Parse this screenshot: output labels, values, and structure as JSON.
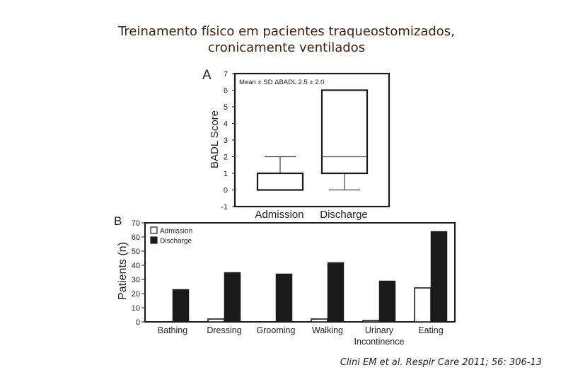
{
  "slide": {
    "title_line1": "Treinamento físico em pacientes traqueostomizados,",
    "title_line2": "cronicamente ventilados",
    "citation": "Clini EM et al. Respir Care 2011; 56: 306-13"
  },
  "chart_data": [
    {
      "type": "box",
      "panel_label": "A",
      "ylabel": "BADL Score",
      "annotation": "Mean ± SD ΔBADL 2.5 ± 2.0",
      "ylim": [
        -1,
        7
      ],
      "yticks": [
        "-1",
        "0",
        "1",
        "2",
        "3",
        "4",
        "5",
        "6",
        "7"
      ],
      "categories": [
        "Admission",
        "Discharge"
      ],
      "boxes": [
        {
          "category": "Admission",
          "whisker_low": 0,
          "q1": 0,
          "median": 0,
          "q3": 1,
          "whisker_high": 2
        },
        {
          "category": "Discharge",
          "whisker_low": 0,
          "q1": 1,
          "median": 2,
          "q3": 6,
          "whisker_high": 6
        }
      ]
    },
    {
      "type": "bar",
      "panel_label": "B",
      "ylabel": "Patients (n)",
      "ylim": [
        0,
        70
      ],
      "yticks": [
        "0",
        "10",
        "20",
        "30",
        "40",
        "50",
        "60",
        "70"
      ],
      "categories": [
        "Bathing",
        "Dressing",
        "Grooming",
        "Walking",
        "Urinary Incontinence",
        "Eating"
      ],
      "category_lines": [
        [
          "Bathing"
        ],
        [
          "Dressing"
        ],
        [
          "Grooming"
        ],
        [
          "Walking"
        ],
        [
          "Urinary",
          "Incontinence"
        ],
        [
          "Eating"
        ]
      ],
      "legend_position": "top-left",
      "series": [
        {
          "name": "Admission",
          "color": "#ffffff",
          "values": [
            0,
            2,
            0,
            2,
            1,
            24
          ]
        },
        {
          "name": "Discharge",
          "color": "#1a1a1a",
          "values": [
            23,
            35,
            34,
            42,
            29,
            64
          ]
        }
      ]
    }
  ]
}
